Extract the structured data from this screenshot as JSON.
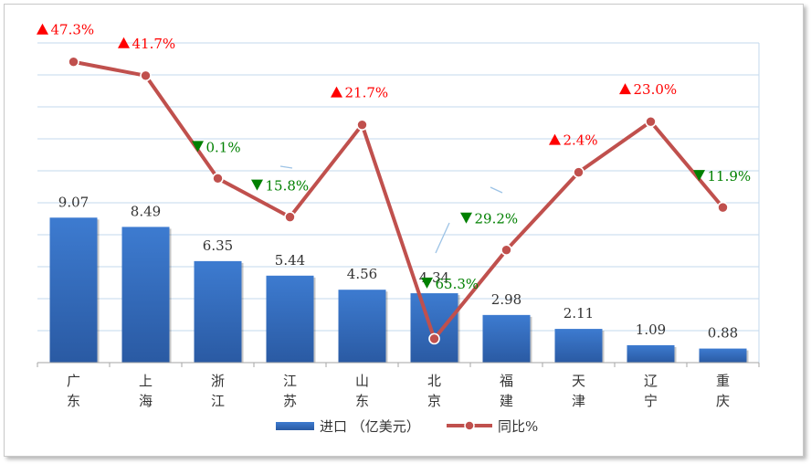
{
  "chart_data": {
    "type": "bar+line",
    "categories": [
      "广东",
      "上海",
      "浙江",
      "江苏",
      "山东",
      "北京",
      "福建",
      "天津",
      "辽宁",
      "重庆"
    ],
    "series": [
      {
        "name": "进口 （亿美元）",
        "type": "bar",
        "values": [
          9.07,
          8.49,
          6.35,
          5.44,
          4.56,
          4.34,
          2.98,
          2.11,
          1.09,
          0.88
        ],
        "labels": [
          "9.07",
          "8.49",
          "6.35",
          "5.44",
          "4.56",
          "4.34",
          "2.98",
          "2.11",
          "1.09",
          "0.88"
        ],
        "color": "#3a72c0"
      },
      {
        "name": "同比%",
        "type": "line",
        "values": [
          47.3,
          41.7,
          -0.1,
          -15.8,
          21.7,
          -65.3,
          -29.2,
          2.4,
          23.0,
          -11.9
        ],
        "labels": [
          "47.3%",
          "41.7%",
          "0.1%",
          "15.8%",
          "21.7%",
          "65.3%",
          "29.2%",
          "2.4%",
          "23.0%",
          "11.9%"
        ],
        "direction": [
          "up",
          "up",
          "down",
          "down",
          "up",
          "down",
          "down",
          "up",
          "up",
          "down"
        ],
        "color": "#c0504d"
      }
    ],
    "colors": {
      "up": "#ff0000",
      "down": "#008000",
      "grid": "#c3d9ee"
    },
    "bar_axis": {
      "ylim": [
        0,
        20
      ]
    },
    "line_axis": {
      "ylim": [
        -75,
        55
      ]
    },
    "grid": true,
    "legend": "bottom"
  }
}
